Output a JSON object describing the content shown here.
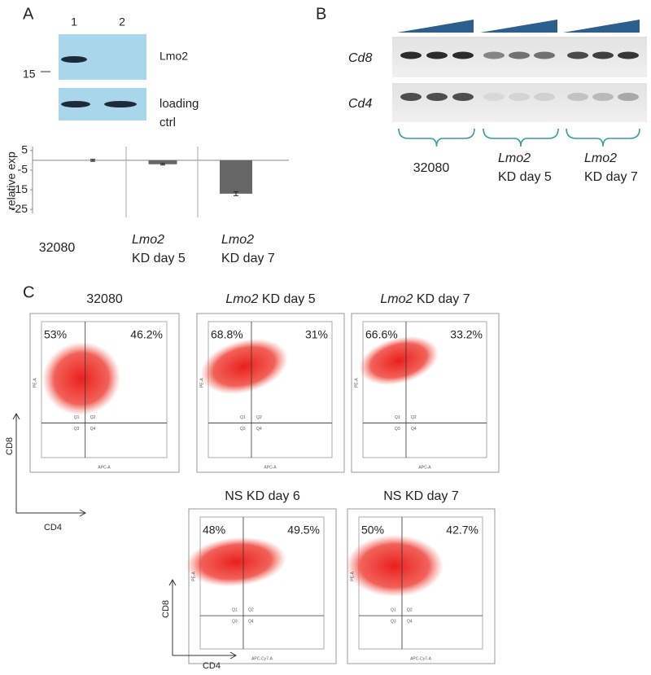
{
  "panel_a": {
    "label": "A",
    "lanes": [
      "1",
      "2"
    ],
    "marker": "15",
    "blots": [
      "Lmo2",
      "loading ctrl"
    ],
    "chart": {
      "type": "bar",
      "ylabel": "relative exp",
      "values": [
        0,
        -2,
        -17
      ],
      "errors": [
        0.5,
        0.4,
        1
      ],
      "ylim": [
        -27,
        7
      ],
      "yticks": [
        5,
        -5,
        -15,
        -25
      ],
      "color": "#666666",
      "categories": [
        {
          "name": "32080"
        },
        {
          "gene": "Lmo2",
          "condition": "KD day 5"
        },
        {
          "gene": "Lmo2",
          "condition": "KD day 7"
        }
      ]
    }
  },
  "panel_b": {
    "label": "B",
    "genes": [
      "Cd8",
      "Cd4"
    ],
    "groups": [
      {
        "name": "32080"
      },
      {
        "gene": "Lmo2",
        "condition": "KD day 5"
      },
      {
        "gene": "Lmo2",
        "condition": "KD day 7"
      }
    ]
  },
  "panel_c": {
    "label": "C",
    "axis_x": "CD4",
    "axis_y": "CD8",
    "plots": [
      {
        "title": "32080",
        "left": "53%",
        "right": "46.2%",
        "xlabel": "APC-A",
        "ylabel": "PE-A"
      },
      {
        "gene": "Lmo2",
        "title": "KD day 5",
        "left": "68.8%",
        "right": "31%",
        "xlabel": "APC-A",
        "ylabel": "PE-A"
      },
      {
        "gene": "Lmo2",
        "title": "KD day 7",
        "left": "66.6%",
        "right": "33.2%",
        "xlabel": "APC-A",
        "ylabel": "PE-A"
      },
      {
        "title": "NS KD day 6",
        "left": "48%",
        "right": "49.5%",
        "xlabel": "APC-Cy7-A",
        "ylabel": "PE-A"
      },
      {
        "title": "NS KD day 7",
        "left": "50%",
        "right": "42.7%",
        "xlabel": "APC-Cy7-A",
        "ylabel": "PE-A"
      }
    ],
    "quadrants": [
      "Q1",
      "Q2",
      "Q3",
      "Q4"
    ]
  }
}
